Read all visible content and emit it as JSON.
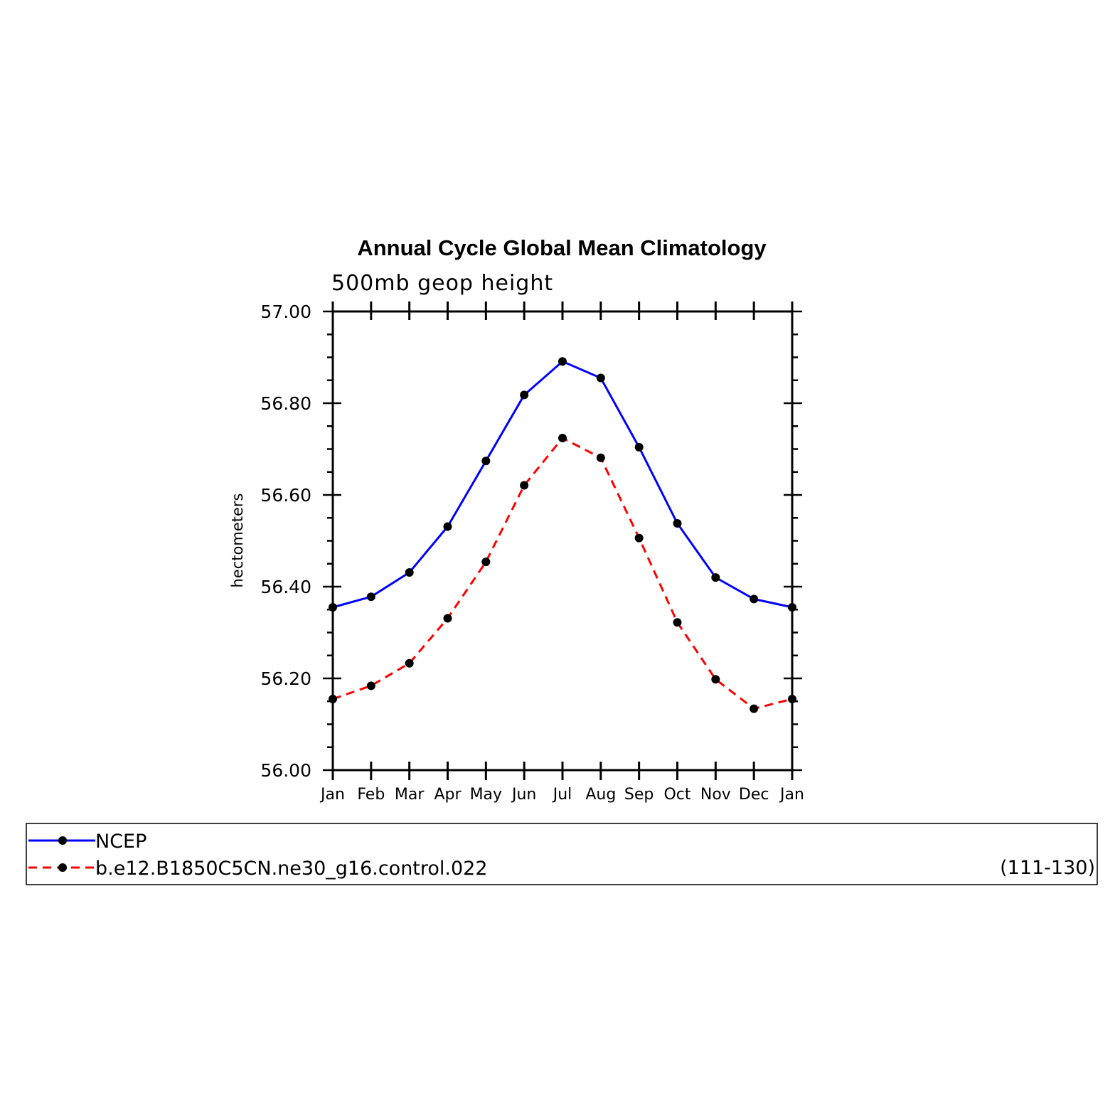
{
  "chart_data": {
    "type": "line",
    "title": "Annual Cycle Global Mean Climatology",
    "subtitle": "500mb geop height",
    "ylabel": "hectometers",
    "xlabel": "",
    "categories": [
      "Jan",
      "Feb",
      "Mar",
      "Apr",
      "May",
      "Jun",
      "Jul",
      "Aug",
      "Sep",
      "Oct",
      "Nov",
      "Dec",
      "Jan"
    ],
    "ylim": [
      56.0,
      57.0
    ],
    "yticks": [
      "56.00",
      "56.20",
      "56.40",
      "56.60",
      "56.80",
      "57.00"
    ],
    "grid": false,
    "legend_position": "bottom",
    "legend_note": "(111-130)",
    "series": [
      {
        "name": "NCEP",
        "color": "#0000ff",
        "dash": "solid",
        "values": [
          56.355,
          56.378,
          56.431,
          56.531,
          56.674,
          56.818,
          56.891,
          56.855,
          56.704,
          56.538,
          56.42,
          56.373,
          56.355
        ]
      },
      {
        "name": "b.e12.B1850C5CN.ne30_g16.control.022",
        "color": "#ff0000",
        "dash": "dashed",
        "values": [
          56.155,
          56.184,
          56.233,
          56.331,
          56.454,
          56.621,
          56.724,
          56.681,
          56.506,
          56.322,
          56.198,
          56.134,
          56.155
        ]
      }
    ]
  }
}
